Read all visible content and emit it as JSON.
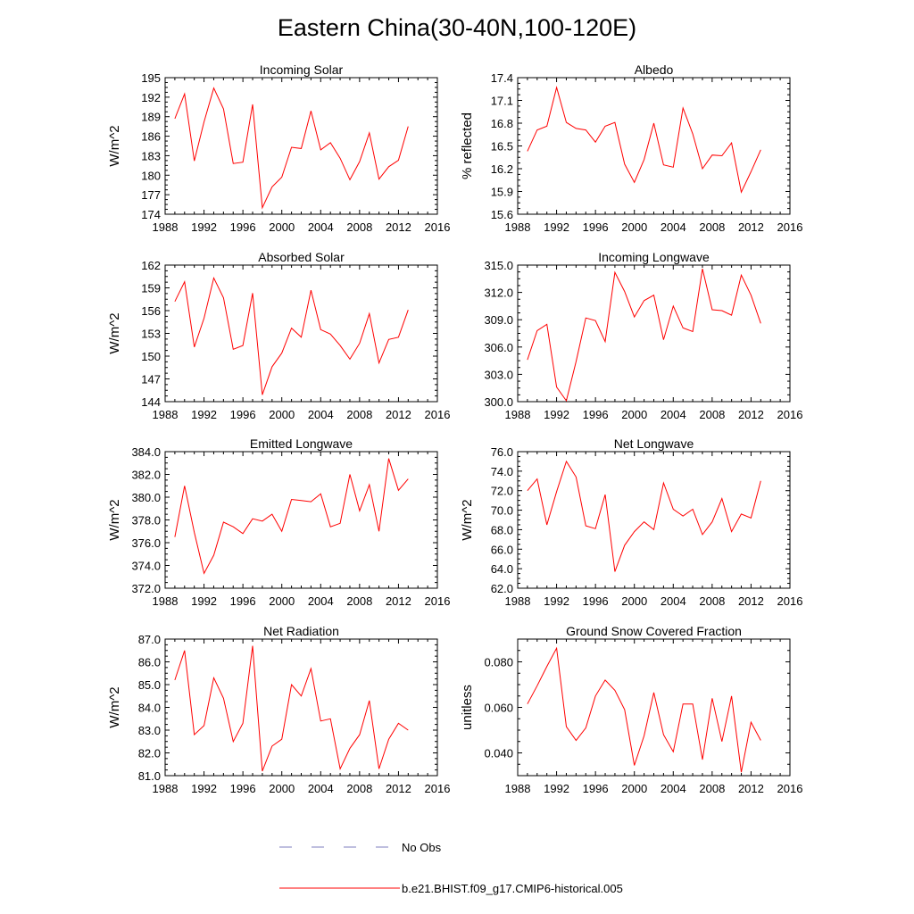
{
  "title": "Eastern China(30-40N,100-120E)",
  "legend": {
    "no_obs_label": "No Obs",
    "no_obs_color": "#7f7fbf",
    "model_label": "b.e21.BHIST.f09_g17.CMIP6-historical.005",
    "model_color": "#ff0000"
  },
  "chart_data": [
    {
      "type": "line",
      "title": "Incoming Solar",
      "ylabel": "W/m^2",
      "xlim": [
        1988,
        2016
      ],
      "xticks": [
        1988,
        1992,
        1996,
        2000,
        2004,
        2008,
        2012,
        2016
      ],
      "ylim": [
        174,
        195
      ],
      "yticks": [
        "174",
        "177",
        "180",
        "183",
        "186",
        "189",
        "192",
        "195"
      ],
      "x": [
        1989,
        1990,
        1991,
        1992,
        1993,
        1994,
        1995,
        1996,
        1997,
        1998,
        1999,
        2000,
        2001,
        2002,
        2003,
        2004,
        2005,
        2006,
        2007,
        2008,
        2009,
        2010,
        2011,
        2012,
        2013
      ],
      "series": [
        {
          "name": "b.e21.BHIST.f09_g17.CMIP6-historical.005",
          "values": [
            188.7,
            192.5,
            182.2,
            188.2,
            193.4,
            190.2,
            181.8,
            182.0,
            190.9,
            175.0,
            178.2,
            179.7,
            184.3,
            184.1,
            189.9,
            183.9,
            185.0,
            182.6,
            179.3,
            182.1,
            186.5,
            179.4,
            181.3,
            182.3,
            187.5
          ]
        }
      ]
    },
    {
      "type": "line",
      "title": "Albedo",
      "ylabel": "% reflected",
      "xlim": [
        1988,
        2016
      ],
      "xticks": [
        1988,
        1992,
        1996,
        2000,
        2004,
        2008,
        2012,
        2016
      ],
      "ylim": [
        15.6,
        17.4
      ],
      "yticks": [
        "15.6",
        "15.9",
        "16.2",
        "16.5",
        "16.8",
        "17.1",
        "17.4"
      ],
      "x": [
        1989,
        1990,
        1991,
        1992,
        1993,
        1994,
        1995,
        1996,
        1997,
        1998,
        1999,
        2000,
        2001,
        2002,
        2003,
        2004,
        2005,
        2006,
        2007,
        2008,
        2009,
        2010,
        2011,
        2012,
        2013
      ],
      "series": [
        {
          "name": "b.e21.BHIST.f09_g17.CMIP6-historical.005",
          "values": [
            16.43,
            16.71,
            16.76,
            17.27,
            16.81,
            16.73,
            16.71,
            16.55,
            16.76,
            16.81,
            16.26,
            16.02,
            16.32,
            16.8,
            16.25,
            16.22,
            17.0,
            16.66,
            16.2,
            16.38,
            16.37,
            16.54,
            15.89,
            16.16,
            16.45
          ]
        }
      ]
    },
    {
      "type": "line",
      "title": "Absorbed Solar",
      "ylabel": "W/m^2",
      "xlim": [
        1988,
        2016
      ],
      "xticks": [
        1988,
        1992,
        1996,
        2000,
        2004,
        2008,
        2012,
        2016
      ],
      "ylim": [
        144,
        162
      ],
      "yticks": [
        "144",
        "147",
        "150",
        "153",
        "156",
        "159",
        "162"
      ],
      "x": [
        1989,
        1990,
        1991,
        1992,
        1993,
        1994,
        1995,
        1996,
        1997,
        1998,
        1999,
        2000,
        2001,
        2002,
        2003,
        2004,
        2005,
        2006,
        2007,
        2008,
        2009,
        2010,
        2011,
        2012,
        2013
      ],
      "series": [
        {
          "name": "b.e21.BHIST.f09_g17.CMIP6-historical.005",
          "values": [
            157.2,
            159.8,
            151.2,
            155.0,
            160.3,
            157.7,
            150.9,
            151.4,
            158.3,
            144.9,
            148.6,
            150.4,
            153.7,
            152.5,
            158.7,
            153.5,
            152.9,
            151.4,
            149.6,
            151.7,
            155.6,
            149.1,
            152.2,
            152.5,
            156.1
          ]
        }
      ]
    },
    {
      "type": "line",
      "title": "Incoming Longwave",
      "ylabel": "",
      "xlim": [
        1988,
        2016
      ],
      "xticks": [
        1988,
        1992,
        1996,
        2000,
        2004,
        2008,
        2012,
        2016
      ],
      "ylim": [
        300.0,
        315.0
      ],
      "yticks": [
        "300.0",
        "303.0",
        "306.0",
        "309.0",
        "312.0",
        "315.0"
      ],
      "x": [
        1989,
        1990,
        1991,
        1992,
        1993,
        1994,
        1995,
        1996,
        1997,
        1998,
        1999,
        2000,
        2001,
        2002,
        2003,
        2004,
        2005,
        2006,
        2007,
        2008,
        2009,
        2010,
        2011,
        2012,
        2013
      ],
      "series": [
        {
          "name": "b.e21.BHIST.f09_g17.CMIP6-historical.005",
          "values": [
            304.6,
            307.8,
            308.5,
            301.6,
            300.1,
            304.4,
            309.2,
            308.9,
            306.6,
            314.2,
            312.1,
            309.3,
            311.1,
            311.7,
            306.8,
            310.5,
            308.1,
            307.7,
            314.6,
            310.1,
            310.0,
            309.5,
            313.9,
            311.7,
            308.6
          ]
        }
      ]
    },
    {
      "type": "line",
      "title": "Emitted Longwave",
      "ylabel": "W/m^2",
      "xlim": [
        1988,
        2016
      ],
      "xticks": [
        1988,
        1992,
        1996,
        2000,
        2004,
        2008,
        2012,
        2016
      ],
      "ylim": [
        372.0,
        384.0
      ],
      "yticks": [
        "372.0",
        "374.0",
        "376.0",
        "378.0",
        "380.0",
        "382.0",
        "384.0"
      ],
      "x": [
        1989,
        1990,
        1991,
        1992,
        1993,
        1994,
        1995,
        1996,
        1997,
        1998,
        1999,
        2000,
        2001,
        2002,
        2003,
        2004,
        2005,
        2006,
        2007,
        2008,
        2009,
        2010,
        2011,
        2012,
        2013
      ],
      "series": [
        {
          "name": "b.e21.BHIST.f09_g17.CMIP6-historical.005",
          "values": [
            376.5,
            381.0,
            376.9,
            373.3,
            374.9,
            377.8,
            377.4,
            376.8,
            378.1,
            377.9,
            378.5,
            377.0,
            379.8,
            379.7,
            379.6,
            380.3,
            377.4,
            377.7,
            382.0,
            378.8,
            381.1,
            377.0,
            383.4,
            380.6,
            381.6
          ]
        }
      ]
    },
    {
      "type": "line",
      "title": "Net Longwave",
      "ylabel": "W/m^2",
      "xlim": [
        1988,
        2016
      ],
      "xticks": [
        1988,
        1992,
        1996,
        2000,
        2004,
        2008,
        2012,
        2016
      ],
      "ylim": [
        62.0,
        76.0
      ],
      "yticks": [
        "62.0",
        "64.0",
        "66.0",
        "68.0",
        "70.0",
        "72.0",
        "74.0",
        "76.0"
      ],
      "x": [
        1989,
        1990,
        1991,
        1992,
        1993,
        1994,
        1995,
        1996,
        1997,
        1998,
        1999,
        2000,
        2001,
        2002,
        2003,
        2004,
        2005,
        2006,
        2007,
        2008,
        2009,
        2010,
        2011,
        2012,
        2013
      ],
      "series": [
        {
          "name": "b.e21.BHIST.f09_g17.CMIP6-historical.005",
          "values": [
            72.0,
            73.2,
            68.5,
            71.9,
            75.0,
            73.4,
            68.4,
            68.1,
            71.6,
            63.7,
            66.4,
            67.8,
            68.8,
            68.0,
            72.8,
            70.1,
            69.4,
            70.1,
            67.5,
            68.8,
            71.2,
            67.8,
            69.6,
            69.2,
            73.0
          ]
        }
      ]
    },
    {
      "type": "line",
      "title": "Net Radiation",
      "ylabel": "W/m^2",
      "xlim": [
        1988,
        2016
      ],
      "xticks": [
        1988,
        1992,
        1996,
        2000,
        2004,
        2008,
        2012,
        2016
      ],
      "ylim": [
        81.0,
        87.0
      ],
      "yticks": [
        "81.0",
        "82.0",
        "83.0",
        "84.0",
        "85.0",
        "86.0",
        "87.0"
      ],
      "x": [
        1989,
        1990,
        1991,
        1992,
        1993,
        1994,
        1995,
        1996,
        1997,
        1998,
        1999,
        2000,
        2001,
        2002,
        2003,
        2004,
        2005,
        2006,
        2007,
        2008,
        2009,
        2010,
        2011,
        2012,
        2013
      ],
      "series": [
        {
          "name": "b.e21.BHIST.f09_g17.CMIP6-historical.005",
          "values": [
            85.2,
            86.5,
            82.8,
            83.2,
            85.3,
            84.4,
            82.5,
            83.3,
            86.7,
            81.2,
            82.3,
            82.6,
            85.0,
            84.5,
            85.7,
            83.4,
            83.5,
            81.3,
            82.2,
            82.8,
            84.3,
            81.3,
            82.6,
            83.3,
            83.0
          ]
        }
      ]
    },
    {
      "type": "line",
      "title": "Ground Snow Covered Fraction",
      "ylabel": "unitless",
      "xlim": [
        1988,
        2016
      ],
      "xticks": [
        1988,
        1992,
        1996,
        2000,
        2004,
        2008,
        2012,
        2016
      ],
      "ylim": [
        0.03,
        0.09
      ],
      "yticks": [
        "0.040",
        "0.060",
        "0.080"
      ],
      "ytick_values": [
        0.04,
        0.06,
        0.08
      ],
      "x": [
        1989,
        1990,
        1991,
        1992,
        1993,
        1994,
        1995,
        1996,
        1997,
        1998,
        1999,
        2000,
        2001,
        2002,
        2003,
        2004,
        2005,
        2006,
        2007,
        2008,
        2009,
        2010,
        2011,
        2012,
        2013
      ],
      "series": [
        {
          "name": "b.e21.BHIST.f09_g17.CMIP6-historical.005",
          "values": [
            0.0615,
            0.0695,
            0.078,
            0.086,
            0.0515,
            0.0455,
            0.051,
            0.065,
            0.072,
            0.0675,
            0.059,
            0.0345,
            0.0475,
            0.0665,
            0.048,
            0.0405,
            0.0615,
            0.0615,
            0.037,
            0.064,
            0.045,
            0.065,
            0.0315,
            0.0535,
            0.0455
          ]
        }
      ]
    }
  ]
}
